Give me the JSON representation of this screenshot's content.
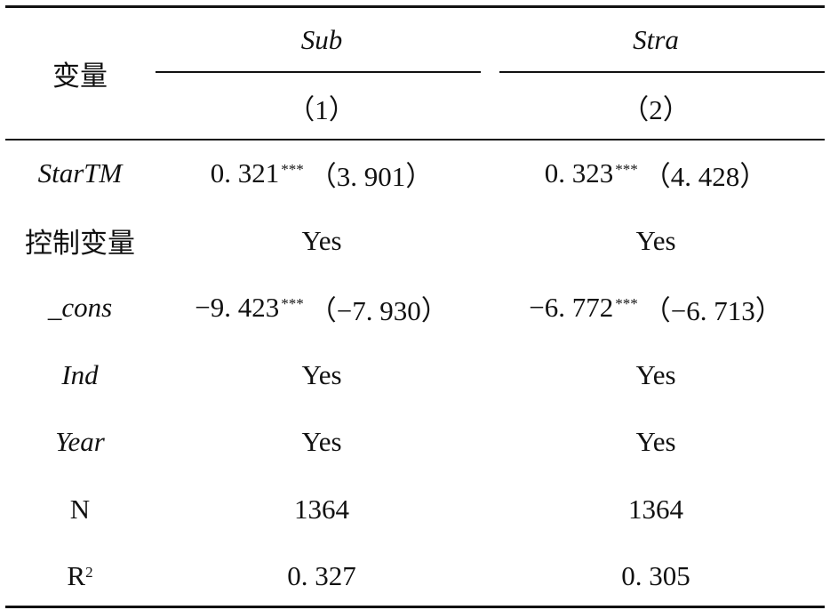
{
  "table": {
    "header": {
      "variable": "变量",
      "groups": [
        "Sub",
        "Stra"
      ],
      "columns": [
        "（1）",
        "（2）"
      ]
    },
    "rows": [
      {
        "label": "StarTM",
        "cells": [
          {
            "coef": "0. 321",
            "stars": "***",
            "t": "（3. 901）"
          },
          {
            "coef": "0. 323",
            "stars": "***",
            "t": "（4. 428）"
          }
        ]
      },
      {
        "label": "控制变量",
        "cells": [
          {
            "coef": "Yes"
          },
          {
            "coef": "Yes"
          }
        ]
      },
      {
        "label": "_cons",
        "cells": [
          {
            "coef": "−9. 423",
            "stars": "***",
            "t": "（−7. 930）"
          },
          {
            "coef": "−6. 772",
            "stars": "***",
            "t": "（−6. 713）"
          }
        ]
      },
      {
        "label": "Ind",
        "cells": [
          {
            "coef": "Yes"
          },
          {
            "coef": "Yes"
          }
        ]
      },
      {
        "label": "Year",
        "cells": [
          {
            "coef": "Yes"
          },
          {
            "coef": "Yes"
          }
        ]
      },
      {
        "label": "N",
        "cells": [
          {
            "coef": "1364"
          },
          {
            "coef": "1364"
          }
        ]
      },
      {
        "label": "R",
        "label_sup": "2",
        "cells": [
          {
            "coef": "0. 327"
          },
          {
            "coef": "0. 305"
          }
        ]
      }
    ]
  }
}
